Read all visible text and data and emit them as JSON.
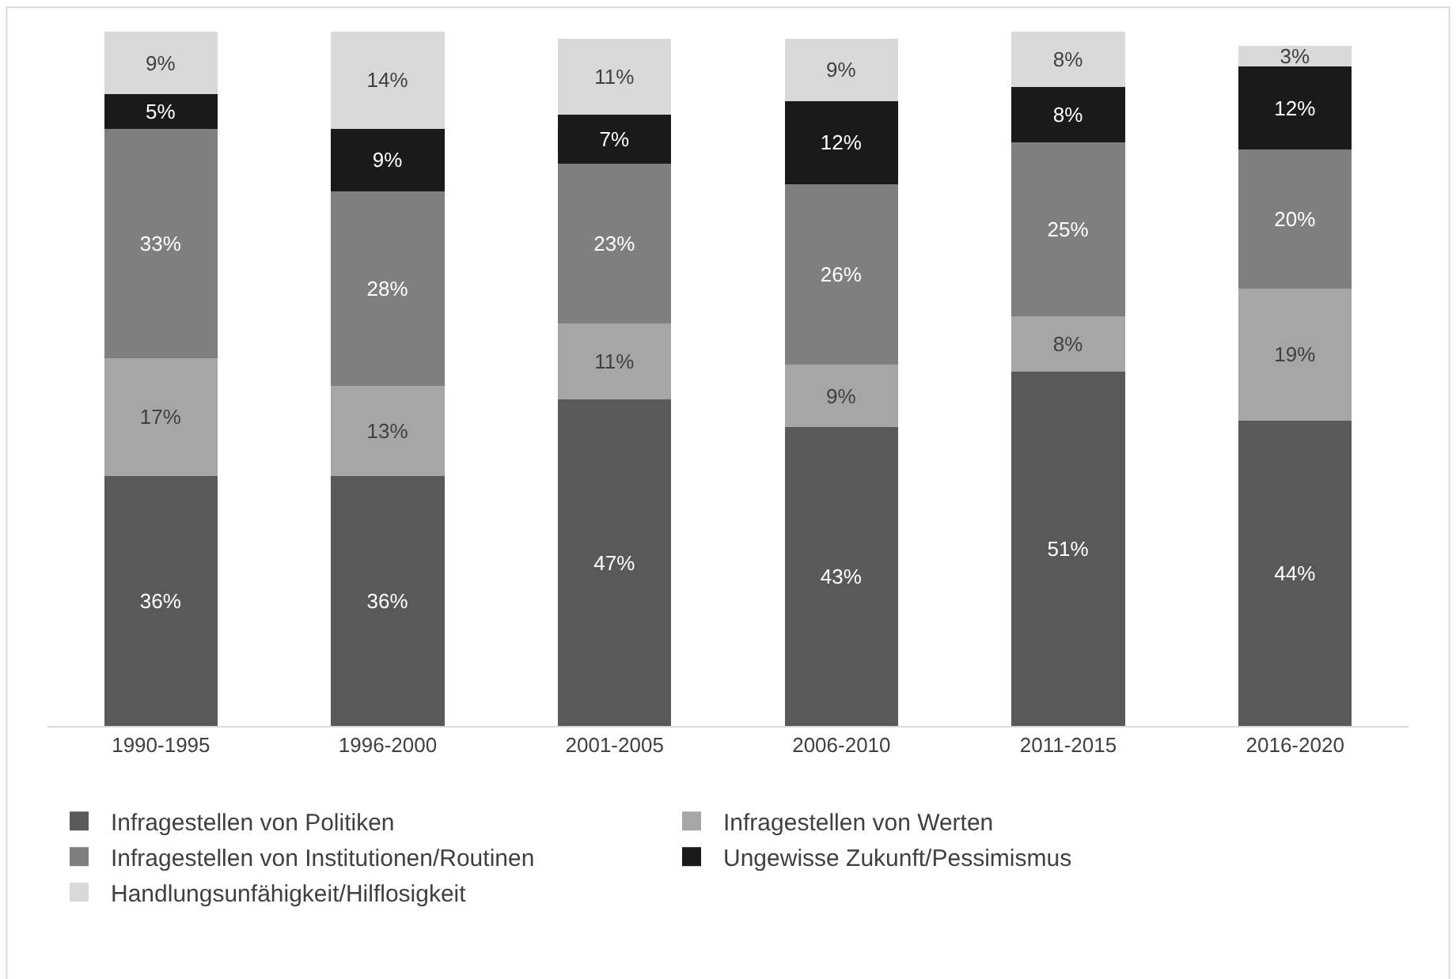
{
  "chart_data": {
    "type": "bar",
    "stacked": true,
    "categories": [
      "1990-1995",
      "1996-2000",
      "2001-2005",
      "2006-2010",
      "2011-2015",
      "2016-2020"
    ],
    "series": [
      {
        "name": "Infragestellen von Politiken",
        "color": "#595959",
        "values": [
          36,
          36,
          47,
          43,
          51,
          44
        ],
        "value_labels": [
          "36%",
          "36%",
          "47%",
          "43%",
          "51%",
          "44%"
        ]
      },
      {
        "name": "Infragestellen von Werten",
        "color": "#a6a6a6",
        "values": [
          17,
          13,
          11,
          9,
          8,
          19
        ],
        "value_labels": [
          "17%",
          "13%",
          "11%",
          "9%",
          "8%",
          "19%"
        ]
      },
      {
        "name": "Infragestellen von Institutionen/Routinen",
        "color": "#7f7f7f",
        "values": [
          33,
          28,
          23,
          26,
          25,
          20
        ],
        "value_labels": [
          "33%",
          "28%",
          "23%",
          "26%",
          "25%",
          "20%"
        ]
      },
      {
        "name": "Ungewisse Zukunft/Pessimismus",
        "color": "#1a1a1a",
        "values": [
          5,
          9,
          7,
          12,
          8,
          12
        ],
        "value_labels": [
          "5%",
          "9%",
          "7%",
          "12%",
          "8%",
          "12%"
        ]
      },
      {
        "name": "Handlungsunfähigkeit/Hilflosigkeit",
        "color": "#d9d9d9",
        "values": [
          9,
          14,
          11,
          9,
          8,
          3
        ],
        "value_labels": [
          "9%",
          "14%",
          "11%",
          "9%",
          "8%",
          "3%"
        ]
      }
    ],
    "legend": "bottom",
    "tick_labels": "x"
  }
}
